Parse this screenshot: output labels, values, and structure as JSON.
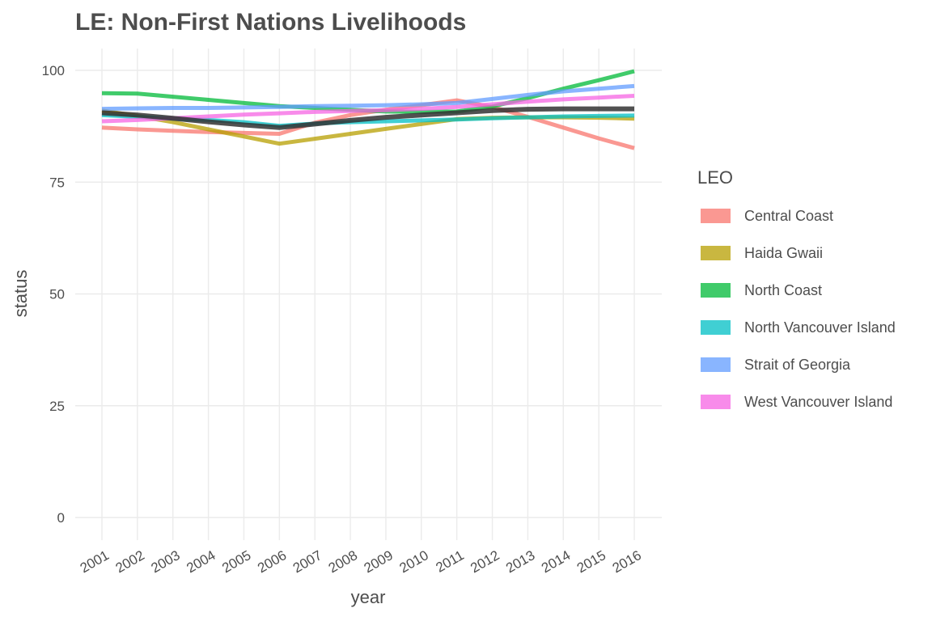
{
  "chart_data": {
    "type": "line",
    "title": "LE: Non-First Nations Livelihoods",
    "xlabel": "year",
    "ylabel": "status",
    "legend_title": "LEO",
    "legend_position": "right",
    "grid": true,
    "x": [
      2001,
      2002,
      2003,
      2004,
      2005,
      2006,
      2007,
      2008,
      2009,
      2010,
      2011,
      2012,
      2013,
      2014,
      2015,
      2016
    ],
    "xlim": [
      2001,
      2016
    ],
    "ylim": [
      0,
      100
    ],
    "yticks": [
      0,
      25,
      50,
      75,
      100
    ],
    "series": [
      {
        "name": "Central Coast",
        "color": "#F8766D",
        "values": [
          87.2,
          86.8,
          86.5,
          86.2,
          86.0,
          85.8,
          88.3,
          90.0,
          91.2,
          92.2,
          93.3,
          91.8,
          89.6,
          87.2,
          84.8,
          82.6
        ]
      },
      {
        "name": "Haida Gwaii",
        "color": "#B79F00",
        "values": [
          91.0,
          89.8,
          88.4,
          86.8,
          85.2,
          83.6,
          84.7,
          85.8,
          86.9,
          88.0,
          89.1,
          89.4,
          89.5,
          89.5,
          89.4,
          89.2
        ]
      },
      {
        "name": "North Coast",
        "color": "#00BA38",
        "values": [
          94.9,
          94.8,
          94.1,
          93.4,
          92.7,
          92.0,
          91.6,
          91.2,
          90.8,
          90.7,
          90.8,
          91.9,
          93.8,
          95.9,
          97.8,
          99.8
        ]
      },
      {
        "name": "North Vancouver Island",
        "color": "#00BFC4",
        "values": [
          90.0,
          89.6,
          89.2,
          88.9,
          88.4,
          87.6,
          88.1,
          88.4,
          88.6,
          88.8,
          89.0,
          89.3,
          89.5,
          89.7,
          89.8,
          89.9
        ]
      },
      {
        "name": "Strait of Georgia",
        "color": "#619CFF",
        "values": [
          91.4,
          91.5,
          91.6,
          91.6,
          91.7,
          91.8,
          92.0,
          92.1,
          92.2,
          92.4,
          92.7,
          93.6,
          94.5,
          95.3,
          95.9,
          96.5
        ]
      },
      {
        "name": "West Vancouver Island",
        "color": "#F564E3",
        "values": [
          88.6,
          88.9,
          89.3,
          89.7,
          90.1,
          90.4,
          90.7,
          90.9,
          91.1,
          91.4,
          91.8,
          92.4,
          93.0,
          93.5,
          93.9,
          94.3
        ]
      },
      {
        "color": "#333333",
        "values": [
          90.5,
          90.0,
          89.3,
          88.5,
          87.8,
          87.2,
          88.0,
          88.8,
          89.5,
          90.0,
          90.5,
          91.0,
          91.3,
          91.4,
          91.4,
          91.4
        ]
      }
    ]
  }
}
